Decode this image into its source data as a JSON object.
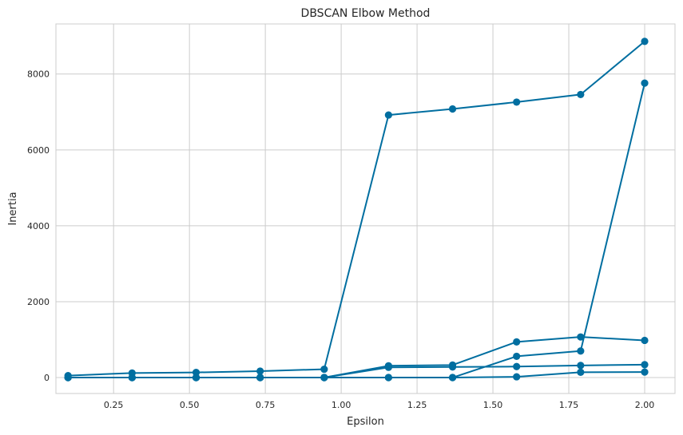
{
  "chart_data": {
    "type": "line",
    "title": "DBSCAN Elbow Method",
    "xlabel": "Epsilon",
    "ylabel": "Inertia",
    "xlim": [
      0.06,
      2.1
    ],
    "ylim": [
      -420,
      9320
    ],
    "x_ticks": [
      0.25,
      0.5,
      0.75,
      1.0,
      1.25,
      1.5,
      1.75,
      2.0
    ],
    "x_tick_labels": [
      "0.25",
      "0.50",
      "0.75",
      "1.00",
      "1.25",
      "1.50",
      "1.75",
      "2.00"
    ],
    "y_ticks": [
      0,
      2000,
      4000,
      6000,
      8000
    ],
    "y_tick_labels": [
      "0",
      "2000",
      "4000",
      "6000",
      "8000"
    ],
    "grid": true,
    "marker": "circle",
    "line_color": "#006ea0",
    "x": [
      0.1,
      0.311,
      0.522,
      0.733,
      0.944,
      1.156,
      1.367,
      1.578,
      1.789,
      2.0
    ],
    "series": [
      {
        "values": [
          50,
          120,
          135,
          170,
          220,
          6920,
          7080,
          7260,
          7460,
          8860
        ]
      },
      {
        "values": [
          0,
          0,
          0,
          0,
          0,
          310,
          330,
          940,
          1070,
          980
        ]
      },
      {
        "values": [
          0,
          0,
          0,
          0,
          0,
          270,
          280,
          290,
          320,
          340
        ]
      },
      {
        "values": [
          0,
          0,
          0,
          0,
          0,
          0,
          0,
          560,
          700,
          7760
        ]
      },
      {
        "values": [
          0,
          0,
          0,
          0,
          0,
          0,
          0,
          20,
          140,
          145
        ]
      }
    ]
  }
}
